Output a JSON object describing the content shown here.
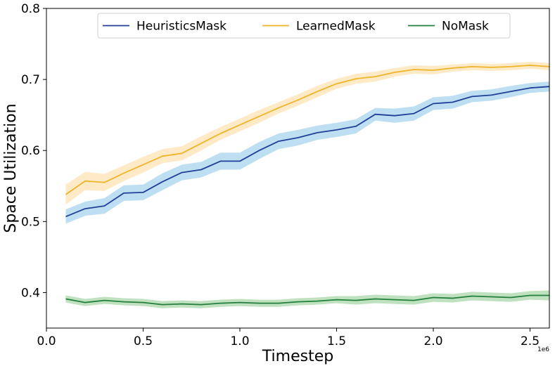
{
  "chart_data": {
    "type": "line",
    "title": "",
    "xlabel": "Timestep",
    "ylabel": "Space Utilization",
    "x_offset_label": "1e6",
    "xlim": [
      0.0,
      2.6
    ],
    "ylim": [
      0.35,
      0.8
    ],
    "xticks": [
      0.0,
      0.5,
      1.0,
      1.5,
      2.0,
      2.5
    ],
    "xtick_labels": [
      "0.0",
      "0.5",
      "1.0",
      "1.5",
      "2.0",
      "2.5"
    ],
    "yticks": [
      0.4,
      0.5,
      0.6,
      0.7,
      0.8
    ],
    "ytick_labels": [
      "0.4",
      "0.5",
      "0.6",
      "0.7",
      "0.8"
    ],
    "grid": false,
    "legend": "top-center",
    "x": [
      0.1,
      0.2,
      0.3,
      0.4,
      0.5,
      0.6,
      0.7,
      0.8,
      0.9,
      1.0,
      1.1,
      1.2,
      1.3,
      1.4,
      1.5,
      1.6,
      1.7,
      1.8,
      1.9,
      2.0,
      2.1,
      2.2,
      2.3,
      2.4,
      2.5,
      2.6
    ],
    "series": [
      {
        "name": "HeuristicsMask",
        "color": "#1f3f99",
        "band_color": "#a8d4ee",
        "values": [
          0.507,
          0.518,
          0.522,
          0.54,
          0.541,
          0.556,
          0.569,
          0.573,
          0.585,
          0.585,
          0.6,
          0.613,
          0.618,
          0.625,
          0.629,
          0.634,
          0.651,
          0.649,
          0.652,
          0.666,
          0.668,
          0.676,
          0.678,
          0.683,
          0.688,
          0.69
        ],
        "band": [
          0.01,
          0.01,
          0.011,
          0.011,
          0.011,
          0.012,
          0.011,
          0.011,
          0.012,
          0.012,
          0.012,
          0.011,
          0.011,
          0.01,
          0.01,
          0.01,
          0.009,
          0.01,
          0.01,
          0.009,
          0.009,
          0.008,
          0.008,
          0.008,
          0.007,
          0.007
        ]
      },
      {
        "name": "LearnedMask",
        "color": "#f0b429",
        "band_color": "#fde3b4",
        "values": [
          0.538,
          0.557,
          0.555,
          0.568,
          0.58,
          0.592,
          0.596,
          0.61,
          0.624,
          0.636,
          0.648,
          0.66,
          0.671,
          0.683,
          0.694,
          0.701,
          0.704,
          0.71,
          0.714,
          0.713,
          0.716,
          0.718,
          0.717,
          0.718,
          0.72,
          0.718
        ],
        "band": [
          0.014,
          0.013,
          0.012,
          0.011,
          0.011,
          0.01,
          0.01,
          0.01,
          0.009,
          0.009,
          0.009,
          0.008,
          0.008,
          0.008,
          0.007,
          0.007,
          0.007,
          0.006,
          0.006,
          0.006,
          0.005,
          0.005,
          0.005,
          0.005,
          0.005,
          0.005
        ]
      },
      {
        "name": "NoMask",
        "color": "#237f3c",
        "band_color": "#a9d7a9",
        "values": [
          0.391,
          0.386,
          0.389,
          0.387,
          0.386,
          0.383,
          0.384,
          0.383,
          0.385,
          0.386,
          0.385,
          0.385,
          0.387,
          0.388,
          0.39,
          0.389,
          0.391,
          0.39,
          0.389,
          0.393,
          0.392,
          0.395,
          0.394,
          0.393,
          0.396,
          0.396
        ],
        "band": [
          0.005,
          0.005,
          0.005,
          0.005,
          0.005,
          0.005,
          0.005,
          0.005,
          0.005,
          0.005,
          0.005,
          0.005,
          0.005,
          0.005,
          0.005,
          0.006,
          0.006,
          0.006,
          0.006,
          0.006,
          0.006,
          0.006,
          0.006,
          0.006,
          0.006,
          0.007
        ]
      }
    ]
  }
}
